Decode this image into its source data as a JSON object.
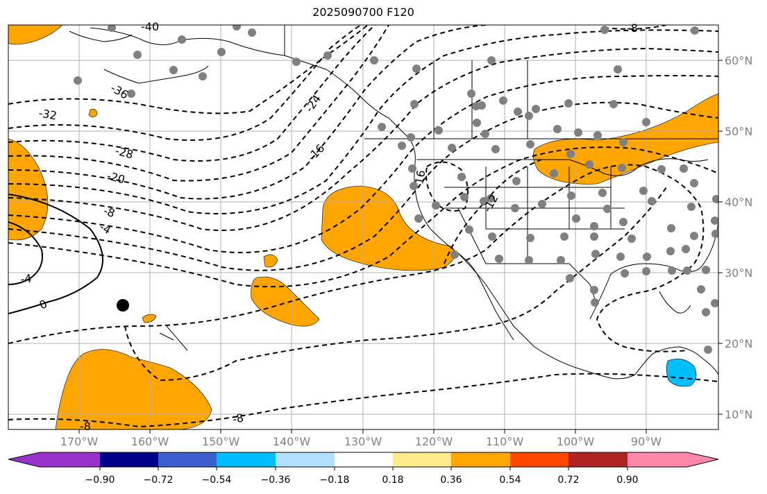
{
  "title": "2025090700 F120",
  "lat_labels": [
    "60°N",
    "50°N",
    "40°N",
    "30°N",
    "20°N",
    "10°N"
  ],
  "lon_labels": [
    "170°W",
    "160°W",
    "150°W",
    "140°W",
    "130°W",
    "120°W",
    "110°W",
    "100°W",
    "90°W"
  ],
  "contour_labels": [
    "-40",
    "-36",
    "-32",
    "-28",
    "-24",
    "-20",
    "-16",
    "-16",
    "-12",
    "-8",
    "-8",
    "-8",
    "-8",
    "-4",
    "-4",
    "0"
  ],
  "colorbar": {
    "ticks": [
      "−0.90",
      "−0.72",
      "−0.54",
      "−0.36",
      "−0.18",
      "0.18",
      "0.36",
      "0.54",
      "0.72",
      "0.90"
    ],
    "colors": [
      "#9932cc",
      "#00008b",
      "#3a5fcd",
      "#00bfff",
      "#b0e2ff",
      "#ffffff",
      "#ffe98a",
      "#ffa500",
      "#ff4500",
      "#b22222",
      "#ff88aa"
    ]
  },
  "fill_colors": {
    "positive": "#ffa500",
    "negative": "#00bfff"
  },
  "station_color": "#808080",
  "marker_color": "#000000"
}
